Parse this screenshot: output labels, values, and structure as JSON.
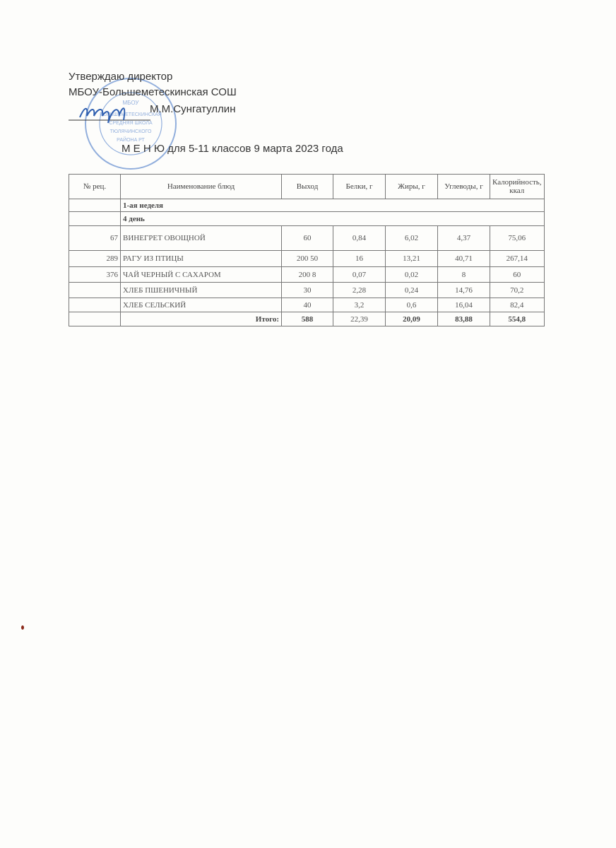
{
  "header": {
    "approve": "Утверждаю  директор",
    "school": "МБОУ-Большеметескинская СОШ",
    "director": "М.М.Сунгатуллин",
    "title": "М Е Н Ю  для 5-11 классов  9 марта  2023 года",
    "stamp_text": "МБОУ БОЛЬШЕМЕТЕСКИНСКАЯ СРЕДНЯЯ ШКОЛА ТЮЛЯЧИНСКОГО РАЙОНА РТ"
  },
  "table": {
    "columns": [
      "№ рец.",
      "Наименование блюд",
      "Выход",
      "Белки, г",
      "Жиры, г",
      "Углеводы, г",
      "Калорийность, ккал"
    ],
    "week": "1-ая неделя",
    "day": "4 день",
    "rows": [
      {
        "rec": "67",
        "name": "ВИНЕГРЕТ ОВОЩНОЙ",
        "out": "60",
        "prot": "0,84",
        "fat": "6,02",
        "carb": "4,37",
        "kcal": "75,06"
      },
      {
        "rec": "289",
        "name": "РАГУ ИЗ ПТИЦЫ",
        "out": "200 50",
        "prot": "16",
        "fat": "13,21",
        "carb": "40,71",
        "kcal": "267,14"
      },
      {
        "rec": "376",
        "name": "ЧАЙ ЧЕРНЫЙ С САХАРОМ",
        "out": "200 8",
        "prot": "0,07",
        "fat": "0,02",
        "carb": "8",
        "kcal": "60"
      },
      {
        "rec": "",
        "name": "ХЛЕБ ПШЕНИЧНЫЙ",
        "out": "30",
        "prot": "2,28",
        "fat": "0,24",
        "carb": "14,76",
        "kcal": "70,2"
      },
      {
        "rec": "",
        "name": "ХЛЕБ СЕЛЬСКИЙ",
        "out": "40",
        "prot": "3,2",
        "fat": "0,6",
        "carb": "16,04",
        "kcal": "82,4"
      }
    ],
    "total": {
      "label": "Итого:",
      "out": "588",
      "prot": "22,39",
      "fat": "20,09",
      "carb": "83,88",
      "kcal": "554,8"
    }
  },
  "colors": {
    "stamp": "#3a6fc4",
    "ink": "#333333"
  }
}
